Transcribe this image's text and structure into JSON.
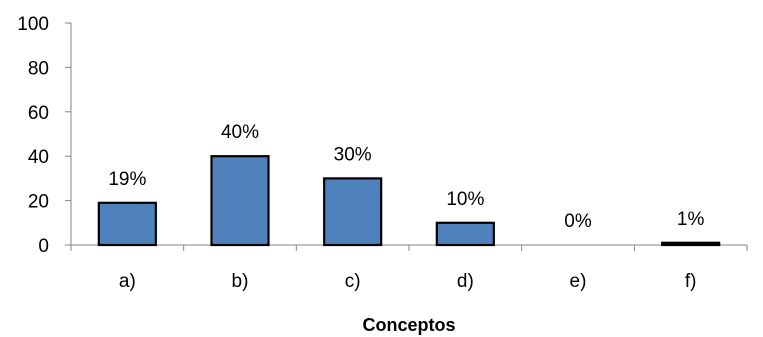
{
  "chart_data": {
    "type": "bar",
    "title": "",
    "xlabel": "Conceptos",
    "ylabel": "",
    "categories": [
      "a)",
      "b)",
      "c)",
      "d)",
      "e)",
      "f)"
    ],
    "values": [
      19,
      40,
      30,
      10,
      0,
      1
    ],
    "data_labels": [
      "19%",
      "40%",
      "30%",
      "10%",
      "0%",
      "1%"
    ],
    "ylim": [
      0,
      100
    ],
    "yticks": [
      0,
      20,
      40,
      60,
      80,
      100
    ],
    "grid": false,
    "legend": "none",
    "bar_color": "#4F81BD",
    "bar_outline_color": "#000000"
  }
}
